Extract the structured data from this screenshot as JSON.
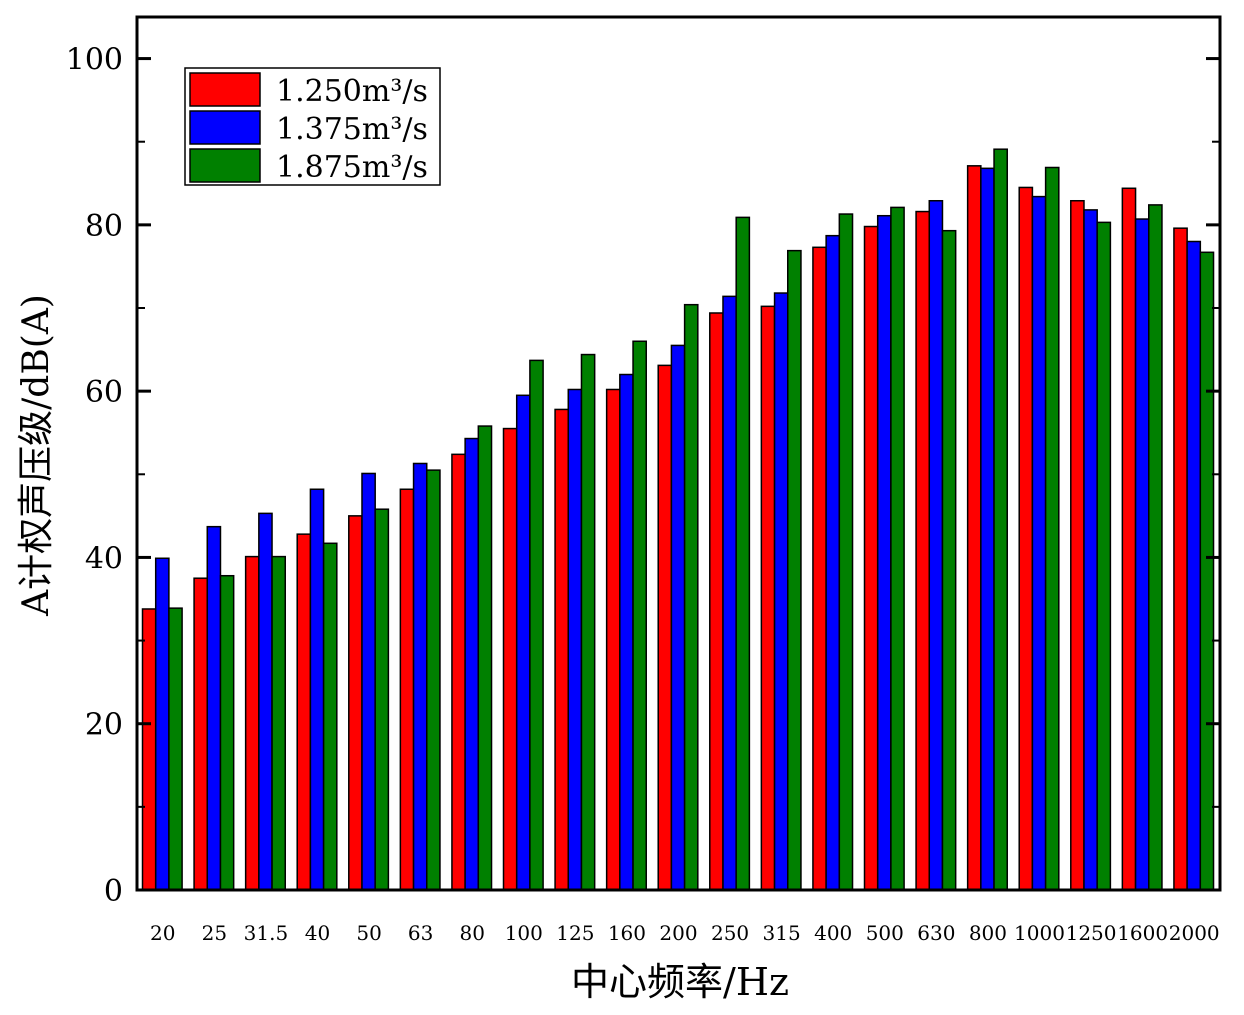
{
  "chart_data": {
    "type": "bar",
    "title": "",
    "xlabel": "中心频率/Hz",
    "ylabel": "A计权声压级/dB(A)",
    "ylim": [
      0,
      105
    ],
    "yticks": [
      0,
      20,
      40,
      60,
      80,
      100
    ],
    "grid": false,
    "legend_position": "top-left",
    "categories": [
      "20",
      "25",
      "31.5",
      "40",
      "50",
      "63",
      "80",
      "100",
      "125",
      "160",
      "200",
      "250",
      "315",
      "400",
      "500",
      "630",
      "800",
      "1000",
      "1250",
      "1600",
      "2000"
    ],
    "series": [
      {
        "name": "1.250m³/s",
        "color": "#ff0000",
        "values": [
          33.8,
          37.5,
          40.1,
          42.8,
          45.0,
          48.2,
          52.4,
          55.5,
          57.8,
          60.2,
          63.1,
          69.4,
          70.2,
          77.3,
          79.8,
          81.6,
          87.1,
          84.5,
          82.9,
          84.4,
          79.6
        ]
      },
      {
        "name": "1.375m³/s",
        "color": "#0000ff",
        "values": [
          39.9,
          43.7,
          45.3,
          48.2,
          50.1,
          51.3,
          54.3,
          59.5,
          60.2,
          62.0,
          65.5,
          71.4,
          71.8,
          78.7,
          81.1,
          82.9,
          86.8,
          83.4,
          81.8,
          80.7,
          78.0
        ]
      },
      {
        "name": "1.875m³/s",
        "color": "#008000",
        "values": [
          33.9,
          37.8,
          40.1,
          41.7,
          45.8,
          50.5,
          55.8,
          63.7,
          64.4,
          66.0,
          70.4,
          80.9,
          76.9,
          81.3,
          82.1,
          79.3,
          89.1,
          86.9,
          80.3,
          82.4,
          76.7
        ]
      }
    ]
  }
}
